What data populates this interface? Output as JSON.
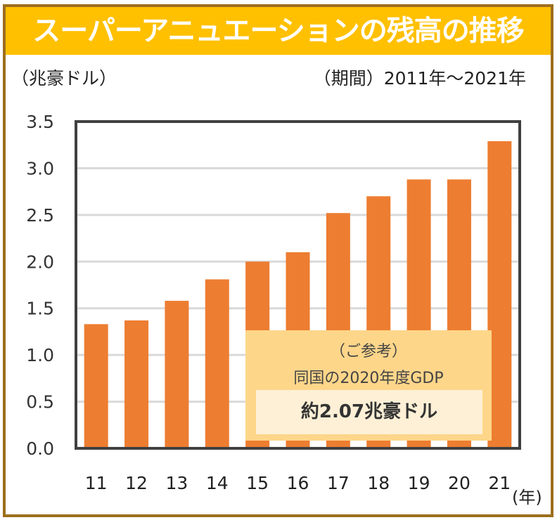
{
  "title": "スーパーアニュエーションの残高の推移",
  "unit_label": "（兆豪ドル）",
  "period_label": "（期間）2011年～2021年",
  "x_unit_label": "(年)",
  "callout": {
    "line1": "（ご参考）",
    "line2": "同国の2020年度GDP",
    "value": "約2.07兆豪ドル"
  },
  "colors": {
    "title_bg": "#FFC000",
    "border": "#9C6E1E",
    "bar": "#ED7D31",
    "grid": "#D9D9D9",
    "axis": "#404040",
    "callout_bg": "#FDD68A",
    "callout_inner_bg": "#FEF0D6"
  },
  "chart_data": {
    "type": "bar",
    "title": "スーパーアニュエーションの残高の推移",
    "xlabel": "(年)",
    "ylabel": "（兆豪ドル）",
    "categories": [
      "11",
      "12",
      "13",
      "14",
      "15",
      "16",
      "17",
      "18",
      "19",
      "20",
      "21"
    ],
    "values": [
      1.33,
      1.37,
      1.58,
      1.81,
      2.0,
      2.1,
      2.52,
      2.7,
      2.88,
      2.88,
      3.29
    ],
    "ylim": [
      0,
      3.5
    ],
    "yticks": [
      "0.0",
      "0.5",
      "1.0",
      "1.5",
      "2.0",
      "2.5",
      "3.0",
      "3.5"
    ],
    "grid": true,
    "legend": "none"
  }
}
